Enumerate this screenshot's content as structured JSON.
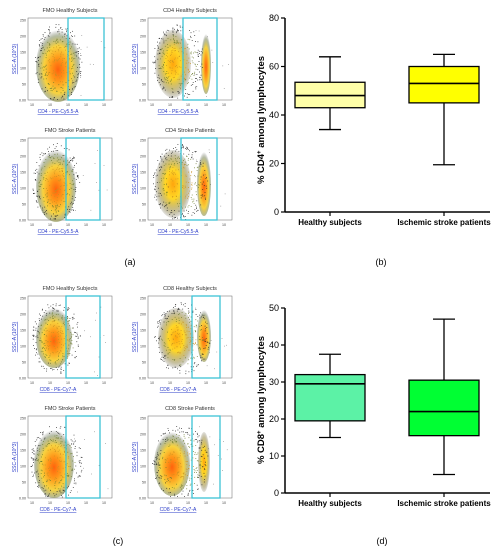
{
  "colors": {
    "gate": "#3cc3d6",
    "box_a_healthy": "#ffffa8",
    "box_a_stroke": "#ffff00",
    "box_b_healthy": "#5cf2a6",
    "box_b_stroke": "#00ff33"
  },
  "panel_labels": {
    "a": "(a)",
    "b": "(b)",
    "c": "(c)",
    "d": "(d)"
  },
  "flow": {
    "y_axis_label": "SSC-A (10^3)",
    "y_ticks": [
      "250",
      "200",
      "150",
      "100",
      "50",
      "0.00"
    ],
    "x_ticks": [
      "10",
      "10",
      "10",
      "10",
      "10"
    ],
    "plots": [
      {
        "id": "a1",
        "title": "FMO Healthy Subjects",
        "xlabel": "CD4 - PE-Cy5.5-A"
      },
      {
        "id": "a2",
        "title": "CD4 Healthy Subjects",
        "xlabel": "CD4 - PE-Cy5.5-A"
      },
      {
        "id": "a3",
        "title": "FMO Stroke Patients",
        "xlabel": "CD4 - PE-Cy5.5-A"
      },
      {
        "id": "a4",
        "title": "CD4 Stroke Patients",
        "xlabel": "CD4 - PE-Cy5.5-A"
      },
      {
        "id": "c1",
        "title": "FMO Healthy Subjects",
        "xlabel": "CD8 - PE-Cy7-A"
      },
      {
        "id": "c2",
        "title": "CD8 Healthy Subjects",
        "xlabel": "CD8 - PE-Cy7-A"
      },
      {
        "id": "c3",
        "title": "FMO Stroke Patients",
        "xlabel": "CD8 - PE-Cy7-A"
      },
      {
        "id": "c4",
        "title": "CD8 Stroke Patients",
        "xlabel": "CD8 - PE-Cy7-A"
      }
    ]
  },
  "chart_data": [
    {
      "id": "b",
      "type": "box",
      "ylabel": "% CD4+ among lymphocytes",
      "ylabel_main": "% CD4",
      "ylabel_sup": "+",
      "ylabel_rest": " among lymphocytes",
      "ylim": [
        0,
        80
      ],
      "yticks": [
        "0",
        "20",
        "40",
        "60",
        "80"
      ],
      "categories": [
        "Healthy subjects",
        "Ischemic stroke patients"
      ],
      "boxes": [
        {
          "min": 34,
          "q1": 43,
          "median": 48,
          "q3": 53.5,
          "max": 64
        },
        {
          "min": 19.5,
          "q1": 45,
          "median": 53,
          "q3": 60,
          "max": 65
        }
      ]
    },
    {
      "id": "d",
      "type": "box",
      "ylabel": "% CD8+ among lymphocytes",
      "ylabel_main": "% CD8",
      "ylabel_sup": "+",
      "ylabel_rest": " among lymphocytes",
      "ylim": [
        0,
        50
      ],
      "yticks": [
        "0",
        "10",
        "20",
        "30",
        "40",
        "50"
      ],
      "categories": [
        "Healthy subjects",
        "Ischemic stroke patients"
      ],
      "boxes": [
        {
          "min": 15,
          "q1": 19.5,
          "median": 29.5,
          "q3": 32,
          "max": 37.5
        },
        {
          "min": 5,
          "q1": 15.5,
          "median": 22,
          "q3": 30.5,
          "max": 47
        }
      ]
    }
  ]
}
